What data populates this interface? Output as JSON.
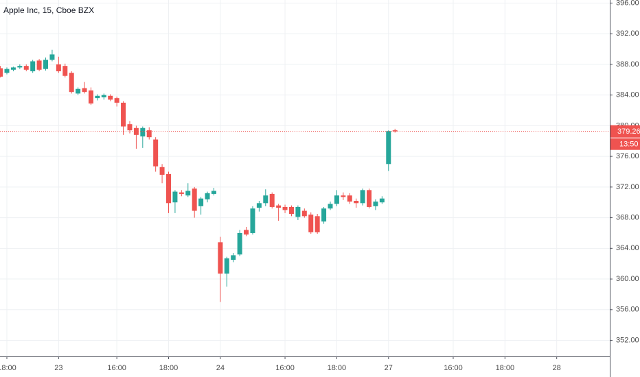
{
  "chart_data": {
    "type": "candlestick",
    "title": "Apple Inc, 15, Cboe BZX",
    "categories": [
      null,
      "18:00",
      null,
      null,
      null,
      null,
      null,
      null,
      null,
      "23",
      null,
      null,
      null,
      null,
      null,
      null,
      null,
      null,
      "16:00",
      null,
      null,
      null,
      null,
      null,
      null,
      null,
      "18:00",
      null,
      null,
      null,
      null,
      null,
      null,
      null,
      "24",
      null,
      null,
      null,
      null,
      null,
      null,
      null,
      null,
      null,
      "16:00",
      null,
      null,
      null,
      null,
      null,
      null,
      null,
      "18:00",
      null,
      null,
      null,
      null,
      null,
      null,
      null,
      "27",
      null,
      null,
      null,
      null,
      null,
      null,
      null,
      null,
      null,
      "16:00",
      null,
      null,
      null,
      null,
      null,
      null,
      null,
      "18:00",
      null,
      null,
      null,
      null,
      null,
      null,
      null,
      "28",
      null,
      null,
      null,
      null,
      null,
      null,
      null,
      null
    ],
    "open": [
      387.5,
      386.9,
      387.3,
      387.6,
      387.8,
      387.1,
      388.5,
      387.4,
      388.6,
      388.0,
      387.8,
      386.9,
      384.2,
      384.9,
      384.6,
      383.6,
      383.7,
      383.9,
      383.6,
      383.0,
      380.2,
      379.7,
      378.6,
      379.4,
      378.2,
      374.6,
      373.7,
      370.0,
      371.3,
      370.9,
      371.8,
      369.5,
      370.4,
      371.1,
      364.8,
      360.7,
      362.5,
      363.2,
      366.4,
      366.0,
      369.3,
      369.9,
      371.1,
      369.6,
      369.4,
      369.4,
      368.1,
      368.9,
      368.4,
      368.2,
      367.5,
      369.2,
      369.8,
      370.9,
      370.9,
      370.2,
      369.9,
      371.6,
      369.5,
      370.0,
      375.0,
      379.4,
      null,
      null,
      null,
      null,
      null,
      null,
      null,
      null,
      null,
      null,
      null,
      null,
      null,
      null,
      null,
      null,
      null,
      null,
      null,
      null,
      null,
      null,
      null,
      null,
      null,
      null,
      null,
      null,
      null,
      null,
      null,
      null,
      null
    ],
    "high": [
      387.8,
      387.6,
      387.7,
      388.0,
      388.0,
      388.6,
      388.7,
      388.9,
      389.9,
      389.0,
      388.1,
      387.1,
      385.0,
      385.7,
      385.0,
      384.1,
      384.2,
      384.1,
      383.8,
      383.2,
      380.6,
      380.0,
      379.9,
      379.8,
      378.5,
      375.0,
      374.0,
      371.6,
      371.6,
      372.5,
      372.0,
      370.7,
      371.4,
      371.9,
      365.5,
      362.9,
      363.4,
      366.4,
      366.8,
      369.5,
      370.2,
      371.7,
      371.3,
      369.8,
      369.7,
      369.6,
      369.6,
      369.2,
      368.7,
      368.5,
      369.4,
      370.1,
      371.6,
      371.3,
      371.2,
      370.5,
      371.8,
      371.8,
      370.4,
      370.8,
      379.4,
      379.6,
      null,
      null,
      null,
      null,
      null,
      null,
      null,
      null,
      null,
      null,
      null,
      null,
      null,
      null,
      null,
      null,
      null,
      null,
      null,
      null,
      null,
      null,
      null,
      null,
      null,
      null,
      null,
      null,
      null,
      null,
      null,
      null,
      null
    ],
    "low": [
      386.3,
      386.7,
      387.1,
      387.4,
      387.1,
      386.9,
      387.1,
      387.2,
      388.4,
      386.9,
      386.3,
      384.2,
      384.0,
      384.2,
      382.7,
      383.3,
      383.4,
      383.2,
      382.5,
      378.8,
      379.0,
      377.0,
      377.1,
      378.2,
      374.0,
      372.5,
      368.6,
      368.6,
      370.8,
      370.7,
      368.0,
      368.4,
      370.0,
      370.9,
      357.0,
      359.0,
      362.2,
      363.0,
      365.6,
      365.8,
      368.8,
      369.5,
      369.2,
      367.6,
      368.6,
      368.2,
      367.7,
      368.0,
      365.9,
      365.9,
      367.2,
      369.0,
      369.5,
      370.3,
      369.8,
      369.3,
      369.6,
      369.2,
      369.0,
      369.8,
      374.1,
      379.1,
      null,
      null,
      null,
      null,
      null,
      null,
      null,
      null,
      null,
      null,
      null,
      null,
      null,
      null,
      null,
      null,
      null,
      null,
      null,
      null,
      null,
      null,
      null,
      null,
      null,
      null,
      null,
      null,
      null,
      null,
      null,
      null,
      null
    ],
    "close": [
      386.4,
      387.4,
      387.6,
      387.8,
      387.3,
      388.4,
      387.3,
      388.6,
      389.3,
      387.1,
      386.5,
      384.4,
      384.8,
      384.4,
      382.9,
      383.9,
      384.0,
      383.4,
      383.0,
      379.9,
      379.4,
      378.8,
      379.7,
      378.5,
      374.7,
      373.6,
      369.9,
      371.4,
      371.1,
      371.5,
      368.9,
      370.5,
      371.2,
      371.5,
      360.7,
      362.7,
      363.1,
      366.0,
      365.8,
      369.2,
      369.9,
      370.9,
      369.4,
      369.3,
      369.0,
      368.5,
      369.4,
      368.2,
      366.1,
      366.1,
      369.2,
      369.8,
      370.9,
      370.7,
      370.1,
      369.9,
      371.6,
      369.4,
      370.1,
      370.5,
      379.3,
      379.26,
      null,
      null,
      null,
      null,
      null,
      null,
      null,
      null,
      null,
      null,
      null,
      null,
      null,
      null,
      null,
      null,
      null,
      null,
      null,
      null,
      null,
      null,
      null,
      null,
      null,
      null,
      null,
      null,
      null,
      null,
      null,
      null,
      null
    ],
    "up_color": "#26a69a",
    "down_color": "#ef5350",
    "last_price": 379.26,
    "countdown": "13:50",
    "ylim": [
      349.9,
      396.4
    ],
    "yticks": [
      {
        "value": 352,
        "label": "352.00"
      },
      {
        "value": 356,
        "label": "356.00"
      },
      {
        "value": 360,
        "label": "360.00"
      },
      {
        "value": 364,
        "label": "364.00"
      },
      {
        "value": 368,
        "label": "368.00"
      },
      {
        "value": 372,
        "label": "372.00"
      },
      {
        "value": 376,
        "label": "376.00"
      },
      {
        "value": 380,
        "label": "380.00"
      },
      {
        "value": 384,
        "label": "384.00"
      },
      {
        "value": 388,
        "label": "388.00"
      },
      {
        "value": 392,
        "label": "392.00"
      },
      {
        "value": 396,
        "label": "396.00"
      }
    ],
    "grid": true
  }
}
